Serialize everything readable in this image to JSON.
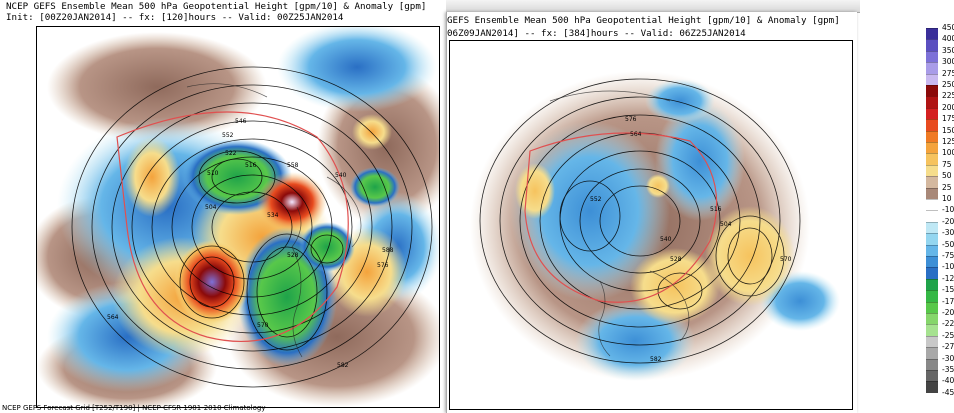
{
  "left_panel": {
    "title": "NCEP GEFS Ensemble Mean 500 hPa Geopotential Height [gpm/10] & Anomaly [gpm]",
    "subtitle": "Init: [00Z20JAN2014] -- fx: [120]hours -- Valid: 00Z25JAN2014",
    "footer": "NCEP GEFS Forecast Grid [T252/T190] | NCEP CFSR 1981-2010 Climatology"
  },
  "right_panel": {
    "title": "GEFS Ensemble Mean 500 hPa Geopotential Height [gpm/10] & Anomaly [gpm]",
    "subtitle": "06Z09JAN2014] -- fx: [384]hours -- Valid: 06Z25JAN2014"
  },
  "colorbar": {
    "labels": [
      "450",
      "400",
      "350",
      "300",
      "275",
      "250",
      "225",
      "200",
      "175",
      "150",
      "125",
      "100",
      "75",
      "50",
      "25",
      "10",
      "-10",
      "-20",
      "-30",
      "-50",
      "-75",
      "-100",
      "-125",
      "-150",
      "-175",
      "-200",
      "-225",
      "-250",
      "-275",
      "-300",
      "-350",
      "-400",
      "-450"
    ],
    "colors": [
      "#3a2f9a",
      "#5b4fc0",
      "#7d71d8",
      "#a99ce8",
      "#c9b9f0",
      "#8b0a0a",
      "#b01414",
      "#d42020",
      "#e84b1f",
      "#f07a24",
      "#f4a33c",
      "#f6c35e",
      "#f6dd8c",
      "#d4b89f",
      "#a88878",
      "#ffffff",
      "#ffffff",
      "#bfe8f5",
      "#94d6f0",
      "#65b6e8",
      "#3d8fd6",
      "#2a6fc4",
      "#1fa34a",
      "#35b845",
      "#58c84a",
      "#86d66b",
      "#a6e290",
      "#c8c8c8",
      "#a8a8a8",
      "#888888",
      "#666666",
      "#444444"
    ]
  },
  "contour_labels_left": [
    "546",
    "552",
    "558",
    "522",
    "540",
    "516",
    "510",
    "504",
    "564",
    "570",
    "576",
    "582",
    "588",
    "534",
    "528"
  ],
  "contour_labels_right": [
    "576",
    "564",
    "552",
    "540",
    "528",
    "516",
    "504",
    "582",
    "570"
  ]
}
